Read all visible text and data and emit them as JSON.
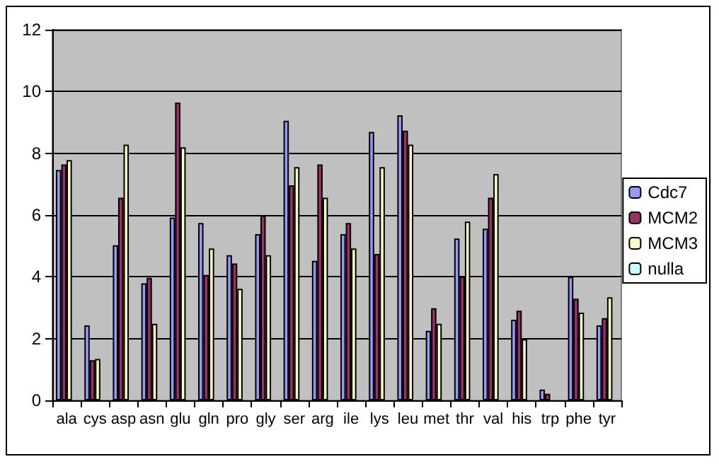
{
  "chart_data": {
    "type": "bar",
    "categories": [
      "ala",
      "cys",
      "asp",
      "asn",
      "glu",
      "gln",
      "pro",
      "gly",
      "ser",
      "arg",
      "ile",
      "lys",
      "leu",
      "met",
      "thr",
      "val",
      "his",
      "trp",
      "phe",
      "tyr"
    ],
    "series": [
      {
        "name": "Cdc7",
        "color": "#9999ff",
        "values": [
          7.46,
          2.43,
          5.02,
          3.79,
          5.92,
          5.74,
          4.7,
          5.38,
          9.05,
          4.52,
          5.38,
          8.69,
          9.23,
          2.25,
          5.24,
          5.56,
          2.61,
          0.35,
          4.0,
          2.43
        ]
      },
      {
        "name": "MCM2",
        "color": "#993366",
        "values": [
          7.64,
          1.3,
          6.56,
          3.97,
          9.64,
          4.06,
          4.43,
          5.98,
          6.96,
          7.64,
          5.74,
          4.74,
          8.73,
          2.98,
          4.0,
          6.56,
          2.9,
          0.21,
          3.29,
          2.66
        ]
      },
      {
        "name": "MCM3",
        "color": "#ffffcc",
        "values": [
          7.78,
          1.34,
          8.28,
          2.48,
          8.19,
          4.92,
          3.61,
          4.7,
          7.55,
          6.56,
          4.92,
          7.55,
          8.28,
          2.48,
          5.79,
          7.33,
          1.98,
          null,
          2.84,
          3.34
        ]
      },
      {
        "name": "nulla",
        "color": "#ccffff",
        "values": [
          null,
          null,
          null,
          null,
          null,
          null,
          null,
          null,
          null,
          null,
          null,
          null,
          null,
          null,
          null,
          null,
          null,
          null,
          null,
          null
        ]
      }
    ],
    "ylim": [
      0,
      12
    ],
    "yticks": [
      0,
      2,
      4,
      6,
      8,
      10,
      12
    ],
    "grid": "y",
    "legend": "right"
  }
}
